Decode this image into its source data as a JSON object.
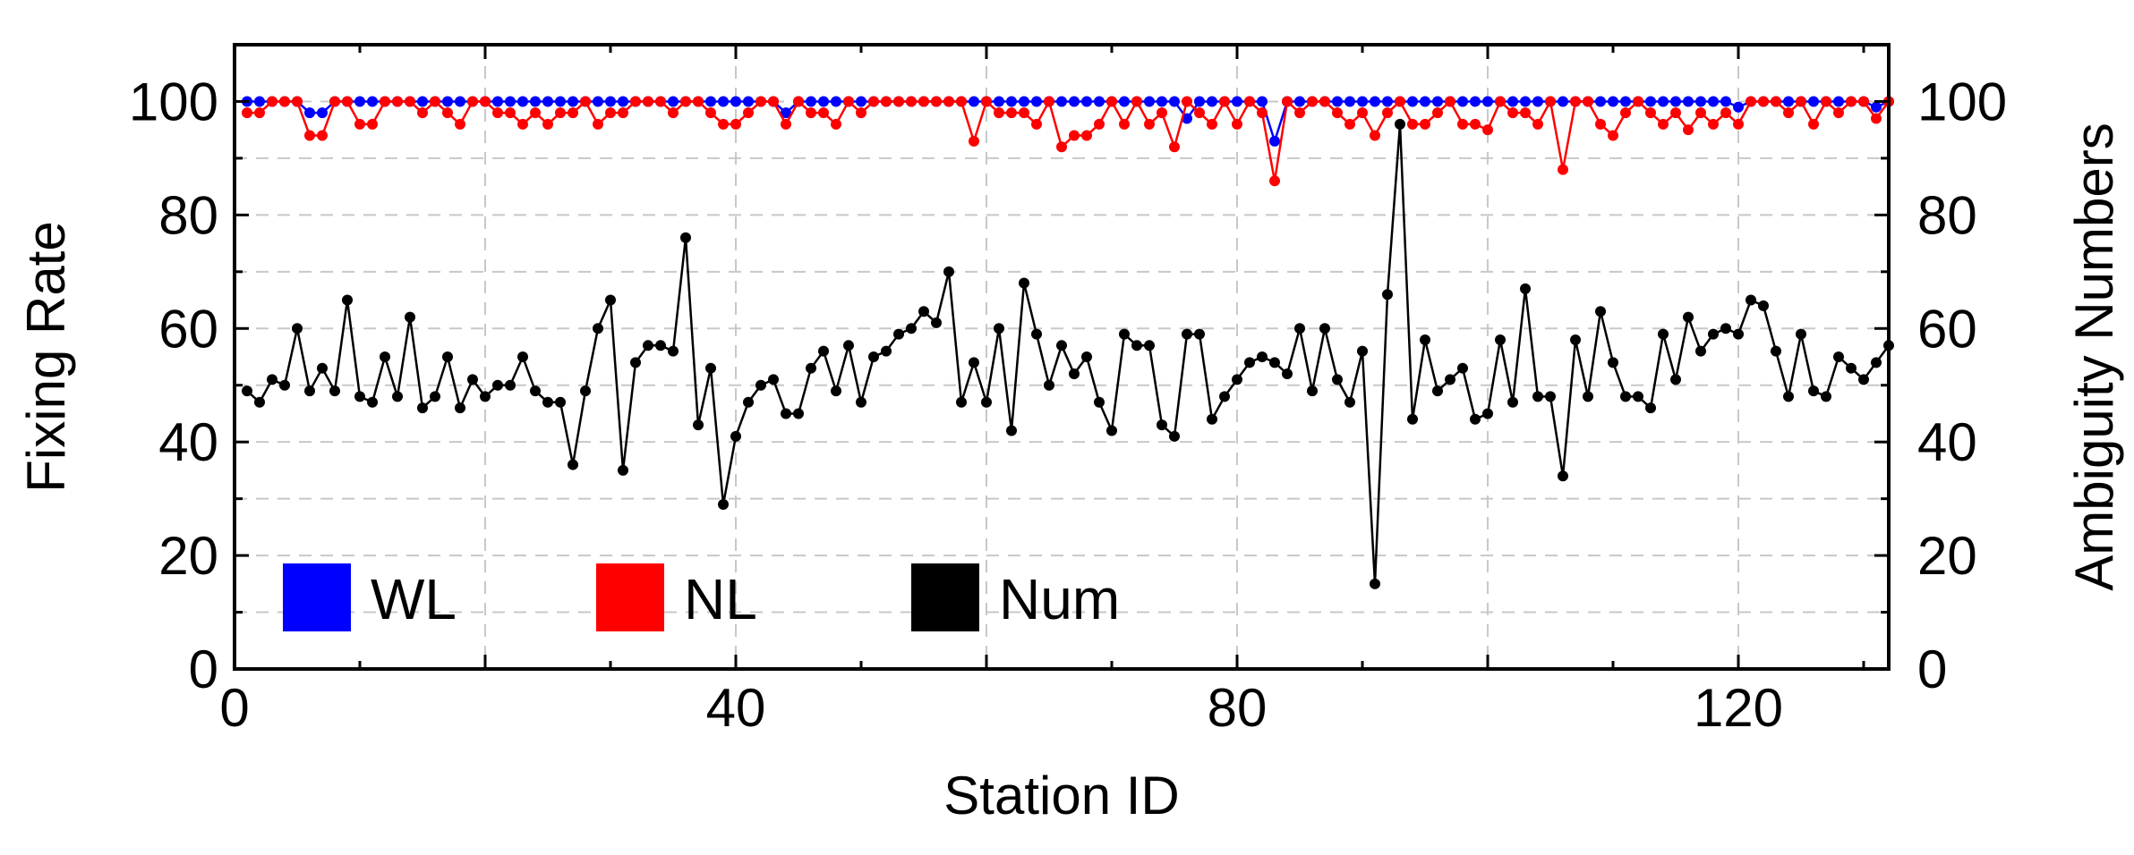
{
  "chart_data": {
    "type": "line",
    "title": "",
    "xlabel": "Station ID",
    "ylabel": "Fixing Rate",
    "y2label": "Ambiguity Numbers",
    "xlim": [
      0,
      132
    ],
    "ylim": [
      0,
      110
    ],
    "y2lim": [
      0,
      110
    ],
    "xticks": [
      0,
      40,
      80,
      120
    ],
    "yticks": [
      0,
      20,
      40,
      60,
      80,
      100
    ],
    "y2ticks": [
      0,
      20,
      40,
      60,
      80,
      100
    ],
    "grid": true,
    "legend_position": "bottom-left",
    "x": [
      1,
      2,
      3,
      4,
      5,
      6,
      7,
      8,
      9,
      10,
      11,
      12,
      13,
      14,
      15,
      16,
      17,
      18,
      19,
      20,
      21,
      22,
      23,
      24,
      25,
      26,
      27,
      28,
      29,
      30,
      31,
      32,
      33,
      34,
      35,
      36,
      37,
      38,
      39,
      40,
      41,
      42,
      43,
      44,
      45,
      46,
      47,
      48,
      49,
      50,
      51,
      52,
      53,
      54,
      55,
      56,
      57,
      58,
      59,
      60,
      61,
      62,
      63,
      64,
      65,
      66,
      67,
      68,
      69,
      70,
      71,
      72,
      73,
      74,
      75,
      76,
      77,
      78,
      79,
      80,
      81,
      82,
      83,
      84,
      85,
      86,
      87,
      88,
      89,
      90,
      91,
      92,
      93,
      94,
      95,
      96,
      97,
      98,
      99,
      100,
      101,
      102,
      103,
      104,
      105,
      106,
      107,
      108,
      109,
      110,
      111,
      112,
      113,
      114,
      115,
      116,
      117,
      118,
      119,
      120,
      121,
      122,
      123,
      124,
      125,
      126,
      127,
      128,
      129,
      130,
      131,
      132
    ],
    "series": [
      {
        "name": "WL",
        "color": "#0000ff",
        "axis": "left",
        "values": [
          100,
          100,
          100,
          100,
          100,
          98,
          98,
          100,
          100,
          100,
          100,
          100,
          100,
          100,
          100,
          100,
          100,
          100,
          100,
          100,
          100,
          100,
          100,
          100,
          100,
          100,
          100,
          100,
          100,
          100,
          100,
          100,
          100,
          100,
          100,
          100,
          100,
          100,
          100,
          100,
          100,
          100,
          100,
          98,
          100,
          100,
          100,
          100,
          100,
          100,
          100,
          100,
          100,
          100,
          100,
          100,
          100,
          100,
          100,
          100,
          100,
          100,
          100,
          100,
          100,
          100,
          100,
          100,
          100,
          100,
          100,
          100,
          100,
          100,
          100,
          97,
          100,
          100,
          100,
          100,
          100,
          100,
          93,
          100,
          100,
          100,
          100,
          100,
          100,
          100,
          100,
          100,
          100,
          100,
          100,
          100,
          100,
          100,
          100,
          100,
          100,
          100,
          100,
          100,
          100,
          100,
          100,
          100,
          100,
          100,
          100,
          100,
          100,
          100,
          100,
          100,
          100,
          100,
          100,
          99,
          100,
          100,
          100,
          100,
          100,
          100,
          100,
          100,
          100,
          100,
          99,
          100
        ]
      },
      {
        "name": "NL",
        "color": "#ff0000",
        "axis": "left",
        "values": [
          98,
          98,
          100,
          100,
          100,
          94,
          94,
          100,
          100,
          96,
          96,
          100,
          100,
          100,
          98,
          100,
          98,
          96,
          100,
          100,
          98,
          98,
          96,
          98,
          96,
          98,
          98,
          100,
          96,
          98,
          98,
          100,
          100,
          100,
          98,
          100,
          100,
          98,
          96,
          96,
          98,
          100,
          100,
          96,
          100,
          98,
          98,
          96,
          100,
          98,
          100,
          100,
          100,
          100,
          100,
          100,
          100,
          100,
          93,
          100,
          98,
          98,
          98,
          96,
          100,
          92,
          94,
          94,
          96,
          100,
          96,
          100,
          96,
          98,
          92,
          100,
          98,
          96,
          100,
          96,
          100,
          98,
          86,
          100,
          98,
          100,
          100,
          98,
          96,
          98,
          94,
          98,
          100,
          96,
          96,
          98,
          100,
          96,
          96,
          95,
          100,
          98,
          98,
          96,
          100,
          88,
          100,
          100,
          96,
          94,
          98,
          100,
          98,
          96,
          98,
          95,
          98,
          96,
          98,
          96,
          100,
          100,
          100,
          98,
          100,
          96,
          100,
          98,
          100,
          100,
          97,
          100
        ]
      },
      {
        "name": "Num",
        "color": "#000000",
        "axis": "right",
        "values": [
          49,
          47,
          51,
          50,
          60,
          49,
          53,
          49,
          65,
          48,
          47,
          55,
          48,
          62,
          46,
          48,
          55,
          46,
          51,
          48,
          50,
          50,
          55,
          49,
          47,
          47,
          36,
          49,
          60,
          65,
          35,
          54,
          57,
          57,
          56,
          76,
          43,
          53,
          29,
          41,
          47,
          50,
          51,
          45,
          45,
          53,
          56,
          49,
          57,
          47,
          55,
          56,
          59,
          60,
          63,
          61,
          70,
          47,
          54,
          47,
          60,
          42,
          68,
          59,
          50,
          57,
          52,
          55,
          47,
          42,
          59,
          57,
          57,
          43,
          41,
          59,
          59,
          44,
          48,
          51,
          54,
          55,
          54,
          52,
          60,
          49,
          60,
          51,
          47,
          56,
          15,
          66,
          96,
          44,
          58,
          49,
          51,
          53,
          44,
          45,
          58,
          47,
          67,
          48,
          48,
          34,
          58,
          48,
          63,
          54,
          48,
          48,
          46,
          59,
          51,
          62,
          56,
          59,
          60,
          59,
          65,
          64,
          56,
          48,
          59,
          49,
          48,
          55,
          53,
          51,
          54,
          57
        ]
      }
    ]
  }
}
